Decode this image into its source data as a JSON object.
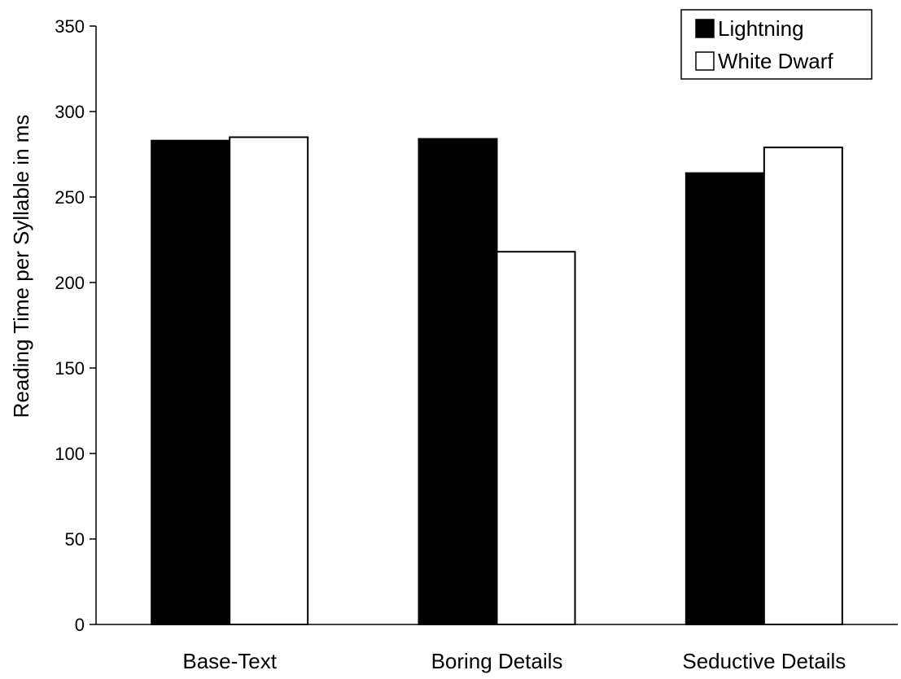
{
  "chart_data": {
    "type": "bar",
    "title": "",
    "xlabel": "",
    "ylabel": "Reading Time per Syllable in ms",
    "categories": [
      "Base-Text",
      "Boring Details",
      "Seductive Details"
    ],
    "series": [
      {
        "name": "Lightning",
        "values": [
          283,
          284,
          264
        ],
        "color": "#000000"
      },
      {
        "name": "White Dwarf",
        "values": [
          285,
          218,
          279
        ],
        "color": "#ffffff"
      }
    ],
    "ylim": [
      0,
      350
    ],
    "yticks": [
      0,
      50,
      100,
      150,
      200,
      250,
      300,
      350
    ],
    "grid": false,
    "legend_position": "top-right"
  }
}
